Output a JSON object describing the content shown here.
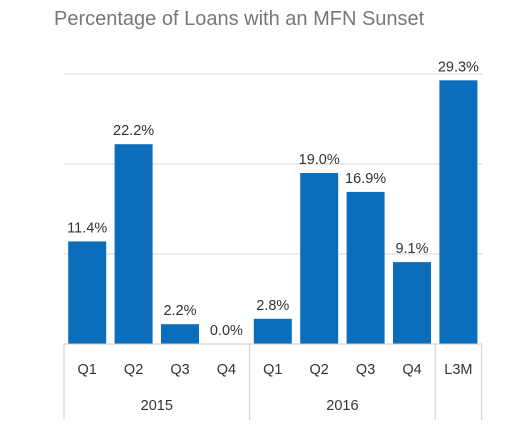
{
  "chart_data": {
    "type": "bar",
    "title": "Percentage of Loans with an MFN Sunset",
    "categories": [
      "Q1",
      "Q2",
      "Q3",
      "Q4",
      "Q1",
      "Q2",
      "Q3",
      "Q4",
      "L3M"
    ],
    "groups": [
      {
        "label": "2015",
        "categories": [
          "Q1",
          "Q2",
          "Q3",
          "Q4"
        ]
      },
      {
        "label": "2016",
        "categories": [
          "Q1",
          "Q2",
          "Q3",
          "Q4"
        ]
      },
      {
        "label": "",
        "categories": [
          "L3M"
        ]
      }
    ],
    "values": [
      11.4,
      22.2,
      2.2,
      0.0,
      2.8,
      19.0,
      16.9,
      9.1,
      29.3
    ],
    "value_labels": [
      "11.4%",
      "22.2%",
      "2.2%",
      "0.0%",
      "2.8%",
      "19.0%",
      "16.9%",
      "9.1%",
      "29.3%"
    ],
    "ylim": [
      0,
      30
    ],
    "gridlines": [
      10,
      20,
      30
    ],
    "grid": true,
    "bar_color": "#0a6ebd",
    "grid_color": "#d9d9d9"
  }
}
